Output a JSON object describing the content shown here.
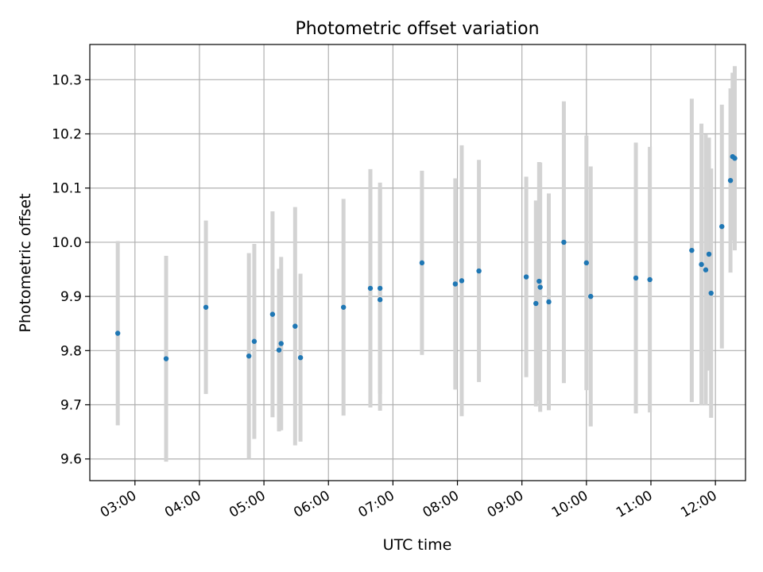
{
  "chart_data": {
    "type": "scatter",
    "title": "Photometric offset variation",
    "xlabel": "UTC time",
    "ylabel": "Photometric offset",
    "x_unit": "hour",
    "xlim": [
      "02:18",
      "12:28"
    ],
    "ylim": [
      9.56,
      10.365
    ],
    "xticks": [
      "03:00",
      "04:00",
      "05:00",
      "06:00",
      "07:00",
      "08:00",
      "09:00",
      "10:00",
      "11:00",
      "12:00"
    ],
    "yticks": [
      9.6,
      9.7,
      9.8,
      9.9,
      10.0,
      10.1,
      10.2,
      10.3
    ],
    "grid": true,
    "series": [
      {
        "marker_color": "#1f77b4",
        "errorbar_color": "#d3d3d3",
        "x": [
          "02:44",
          "03:29",
          "04:06",
          "04:46",
          "04:51",
          "05:08",
          "05:14",
          "05:16",
          "05:29",
          "05:34",
          "06:14",
          "06:39",
          "06:48",
          "06:48",
          "07:27",
          "07:58",
          "08:04",
          "08:20",
          "09:04",
          "09:13",
          "09:16",
          "09:17",
          "09:25",
          "09:39",
          "10:00",
          "10:04",
          "10:46",
          "10:59",
          "11:38",
          "11:47",
          "11:51",
          "11:54",
          "11:56",
          "12:06",
          "12:14",
          "12:16",
          "12:18"
        ],
        "y": [
          9.832,
          9.785,
          9.88,
          9.79,
          9.817,
          9.867,
          9.801,
          9.813,
          9.845,
          9.787,
          9.88,
          9.915,
          9.915,
          9.894,
          9.962,
          9.923,
          9.929,
          9.947,
          9.936,
          9.887,
          9.928,
          9.917,
          9.89,
          10.0,
          9.962,
          9.9,
          9.934,
          9.931,
          9.985,
          9.959,
          9.949,
          9.978,
          9.906,
          10.029,
          10.114,
          10.158,
          10.155
        ],
        "y_error": [
          0.17,
          0.19,
          0.16,
          0.19,
          0.18,
          0.19,
          0.15,
          0.16,
          0.22,
          0.155,
          0.2,
          0.22,
          0.195,
          0.205,
          0.17,
          0.195,
          0.25,
          0.205,
          0.185,
          0.19,
          0.22,
          0.23,
          0.2,
          0.26,
          0.235,
          0.24,
          0.25,
          0.245,
          0.28,
          0.26,
          0.25,
          0.215,
          0.23,
          0.225,
          0.17,
          0.155,
          0.17
        ]
      }
    ]
  }
}
